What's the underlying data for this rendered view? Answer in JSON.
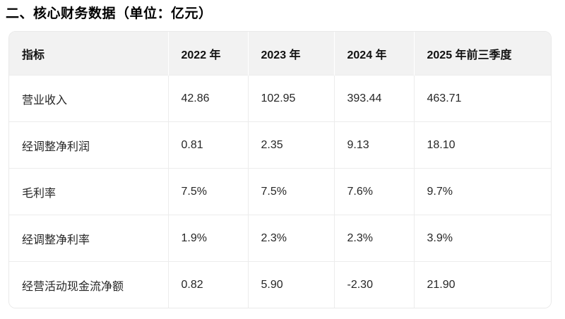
{
  "page": {
    "title": "二、核心财务数据（单位：亿元）"
  },
  "table": {
    "columns": [
      "指标",
      "2022 年",
      "2023 年",
      "2024 年",
      "2025 年前三季度"
    ],
    "rows": [
      {
        "label": "营业收入",
        "values": [
          "42.86",
          "102.95",
          "393.44",
          "463.71"
        ]
      },
      {
        "label": "经调整净利润",
        "values": [
          "0.81",
          "2.35",
          "9.13",
          "18.10"
        ]
      },
      {
        "label": "毛利率",
        "values": [
          "7.5%",
          "7.5%",
          "7.6%",
          "9.7%"
        ]
      },
      {
        "label": "经调整净利率",
        "values": [
          "1.9%",
          "2.3%",
          "2.3%",
          "3.9%"
        ]
      },
      {
        "label": "经营活动现金流净额",
        "values": [
          "0.82",
          "5.90",
          "-2.30",
          "21.90"
        ]
      }
    ]
  },
  "colors": {
    "header_background": "#f2f2f2",
    "table_border": "#e9e9e9",
    "body_text": "#262626",
    "title_text": "#000000"
  }
}
